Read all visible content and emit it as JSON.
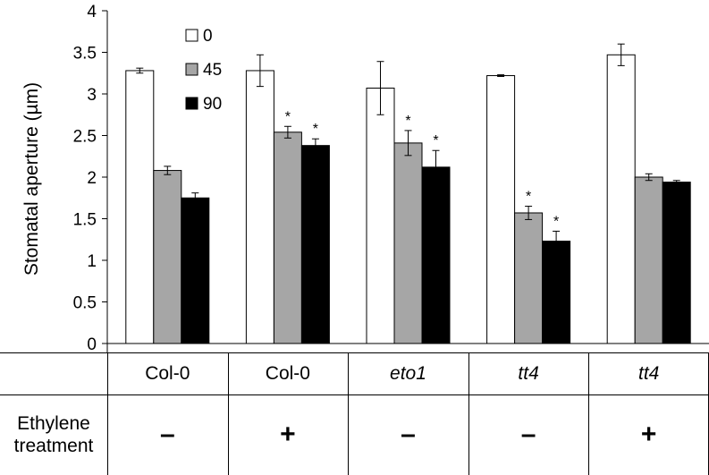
{
  "chart_data": {
    "type": "bar",
    "ylabel": "Stomatal aperture (µm)",
    "ylim": [
      0,
      4
    ],
    "yticks": [
      "0",
      "0.5",
      "1",
      "1.5",
      "2",
      "2.5",
      "3",
      "3.5",
      "4"
    ],
    "grid": false,
    "legend_position": "top-left",
    "series": [
      {
        "name": "0",
        "color": "#ffffff",
        "values": [
          3.28,
          3.28,
          3.07,
          3.22,
          3.47
        ],
        "errors": [
          0.03,
          0.19,
          0.32,
          0.01,
          0.13
        ],
        "significant": [
          false,
          false,
          false,
          false,
          false
        ]
      },
      {
        "name": "45",
        "color": "#a6a6a6",
        "values": [
          2.08,
          2.54,
          2.41,
          1.57,
          2.0
        ],
        "errors": [
          0.05,
          0.07,
          0.15,
          0.08,
          0.04
        ],
        "significant": [
          false,
          true,
          true,
          true,
          false
        ]
      },
      {
        "name": "90",
        "color": "#000000",
        "values": [
          1.75,
          2.38,
          2.12,
          1.23,
          1.94
        ],
        "errors": [
          0.06,
          0.08,
          0.2,
          0.12,
          0.02
        ],
        "significant": [
          false,
          true,
          true,
          true,
          false
        ]
      }
    ],
    "significance_marker": "*",
    "table": {
      "genotypes": [
        "Col-0",
        "Col-0",
        "eto1",
        "tt4",
        "tt4"
      ],
      "genotype_italic": [
        false,
        false,
        true,
        true,
        true
      ],
      "row_label": "Ethylene treatment",
      "treatment": [
        "–",
        "+",
        "–",
        "–",
        "+"
      ]
    }
  }
}
